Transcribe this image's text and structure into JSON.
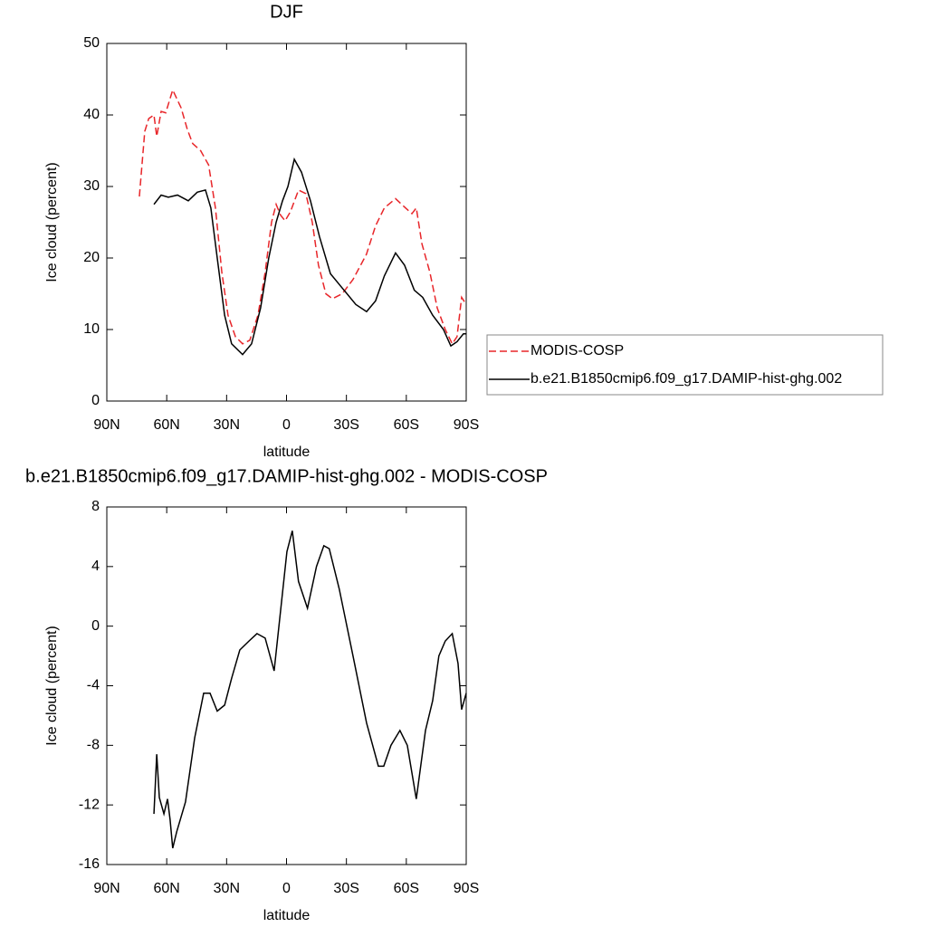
{
  "chart_data": [
    {
      "type": "line",
      "title": "DJF",
      "x_label": "latitude",
      "y_label": "Ice cloud (percent)",
      "xlim": [
        90,
        -90
      ],
      "xticks": [
        {
          "value": 90,
          "label": "90N"
        },
        {
          "value": 60,
          "label": "60N"
        },
        {
          "value": 30,
          "label": "30N"
        },
        0,
        {
          "value": -30,
          "label": "30S"
        },
        {
          "value": -60,
          "label": "60S"
        },
        {
          "value": -90,
          "label": "90S"
        }
      ],
      "ylim": [
        0,
        50
      ],
      "yticks": [
        0,
        10,
        20,
        30,
        40,
        50
      ],
      "legend": "right",
      "series": [
        {
          "name": "MODIS-COSP",
          "color": "#e8262a",
          "dash": "dashed",
          "x": [
            73.7,
            71,
            69,
            66.4,
            65,
            62.8,
            60.5,
            57,
            52.8,
            49.7,
            47,
            43,
            39,
            35.6,
            32.4,
            29.3,
            25.6,
            22,
            18.4,
            14.3,
            10.7,
            7.5,
            5.2,
            3,
            0.7,
            -2,
            -6,
            -9.7,
            -12.9,
            -16,
            -19.7,
            -23,
            -27.9,
            -33.3,
            -40,
            -44.6,
            -49,
            -54.6,
            -59.6,
            -62.8,
            -65,
            -67.8,
            -71.8,
            -75.5,
            -79.5,
            -83,
            -85.4,
            -87.7,
            -90
          ],
          "values": [
            28.6,
            37.7,
            39.5,
            40,
            37,
            40.5,
            40.3,
            43.5,
            41,
            38,
            36,
            35,
            33,
            27,
            18,
            12,
            9,
            8,
            8.5,
            12,
            18,
            25,
            27.5,
            26,
            25.2,
            26.5,
            29.5,
            29,
            25,
            19,
            15,
            14.3,
            15,
            17,
            20.5,
            24.5,
            27,
            28.3,
            27,
            26.2,
            27,
            22,
            18,
            13,
            10,
            8,
            9,
            14.5,
            13.5
          ]
        },
        {
          "name": "b.e21.B1850cmip6.f09_g17.DAMIP-hist-ghg.002",
          "color": "#000000",
          "dash": "solid",
          "x": [
            66.4,
            62.8,
            59.2,
            54.6,
            49.2,
            44.7,
            40.6,
            37.9,
            34.7,
            31,
            27.5,
            22,
            17.5,
            13,
            8.9,
            5.2,
            2,
            -0.7,
            -3.9,
            -7.5,
            -12,
            -16.5,
            -22,
            -28.8,
            -34.7,
            -40.1,
            -44.6,
            -49,
            -54.6,
            -59.1,
            -64,
            -68.2,
            -73.2,
            -78.6,
            -82.3,
            -85.4,
            -88.6,
            -90
          ],
          "values": [
            27.5,
            28.8,
            28.5,
            28.8,
            28,
            29.2,
            29.5,
            27,
            20,
            12,
            8,
            6.5,
            8,
            13,
            20,
            25,
            28,
            30,
            33.8,
            32,
            28,
            23,
            17.8,
            15.5,
            13.5,
            12.5,
            14,
            17.5,
            20.7,
            19,
            15.5,
            14.5,
            12,
            10,
            7.7,
            8.3,
            9.4,
            9.4
          ]
        }
      ]
    },
    {
      "type": "line",
      "title": "b.e21.B1850cmip6.f09_g17.DAMIP-hist-ghg.002 - MODIS-COSP",
      "x_label": "latitude",
      "y_label": "Ice cloud (percent)",
      "xlim": [
        90,
        -90
      ],
      "xticks": [
        {
          "value": 90,
          "label": "90N"
        },
        {
          "value": 60,
          "label": "60N"
        },
        {
          "value": 30,
          "label": "30N"
        },
        0,
        {
          "value": -30,
          "label": "30S"
        },
        {
          "value": -60,
          "label": "60S"
        },
        {
          "value": -90,
          "label": "90S"
        }
      ],
      "ylim": [
        -16,
        8
      ],
      "yticks": [
        -16,
        -12,
        -8,
        -4,
        0,
        4,
        8
      ],
      "color": "#000000",
      "x": [
        66.4,
        65,
        63.7,
        61.4,
        59.6,
        58.3,
        57,
        55,
        50.6,
        46,
        41.5,
        38.3,
        34.7,
        31,
        27.5,
        23.4,
        18.8,
        14.8,
        10.7,
        6.2,
        3,
        -0.2,
        -2.9,
        -6,
        -10.5,
        -15,
        -18.7,
        -21.4,
        -26.4,
        -33.3,
        -40.1,
        -46,
        -48.7,
        -52.3,
        -56.8,
        -60.5,
        -65,
        -69.6,
        -73.2,
        -76.3,
        -79.5,
        -83,
        -85.9,
        -87.7,
        -90
      ],
      "values": [
        -12.6,
        -8.6,
        -11.5,
        -12.6,
        -11.6,
        -13,
        -14.9,
        -13.8,
        -11.8,
        -7.5,
        -4.5,
        -4.5,
        -5.7,
        -5.3,
        -3.5,
        -1.6,
        -1,
        -0.5,
        -0.8,
        -3,
        1,
        5,
        6.4,
        3,
        1.2,
        4,
        5.4,
        5.2,
        2.5,
        -2,
        -6.5,
        -9.4,
        -9.4,
        -8,
        -7,
        -8,
        -11.6,
        -7,
        -5,
        -2,
        -1,
        -0.5,
        -2.5,
        -5.6,
        -4.5
      ]
    }
  ]
}
